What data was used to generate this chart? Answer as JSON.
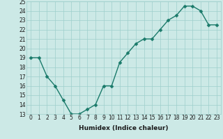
{
  "x": [
    0,
    1,
    2,
    3,
    4,
    5,
    6,
    7,
    8,
    9,
    10,
    11,
    12,
    13,
    14,
    15,
    16,
    17,
    18,
    19,
    20,
    21,
    22,
    23
  ],
  "y": [
    19,
    19,
    17,
    16,
    14.5,
    13,
    13,
    13.5,
    14,
    16,
    16,
    18.5,
    19.5,
    20.5,
    21,
    21,
    22,
    23,
    23.5,
    24.5,
    24.5,
    24,
    22.5,
    22.5
  ],
  "line_color": "#1a7a6a",
  "marker_color": "#1a7a6a",
  "bg_color": "#cce9e6",
  "grid_color": "#9ecfcb",
  "xlabel": "Humidex (Indice chaleur)",
  "xlim": [
    -0.5,
    23.5
  ],
  "ylim": [
    13,
    25
  ],
  "yticks": [
    13,
    14,
    15,
    16,
    17,
    18,
    19,
    20,
    21,
    22,
    23,
    24,
    25
  ],
  "xticks": [
    0,
    1,
    2,
    3,
    4,
    5,
    6,
    7,
    8,
    9,
    10,
    11,
    12,
    13,
    14,
    15,
    16,
    17,
    18,
    19,
    20,
    21,
    22,
    23
  ],
  "font_color": "#1a1a1a",
  "linewidth": 1.0,
  "markersize": 2.5,
  "tick_fontsize": 5.5,
  "label_fontsize": 6.5
}
